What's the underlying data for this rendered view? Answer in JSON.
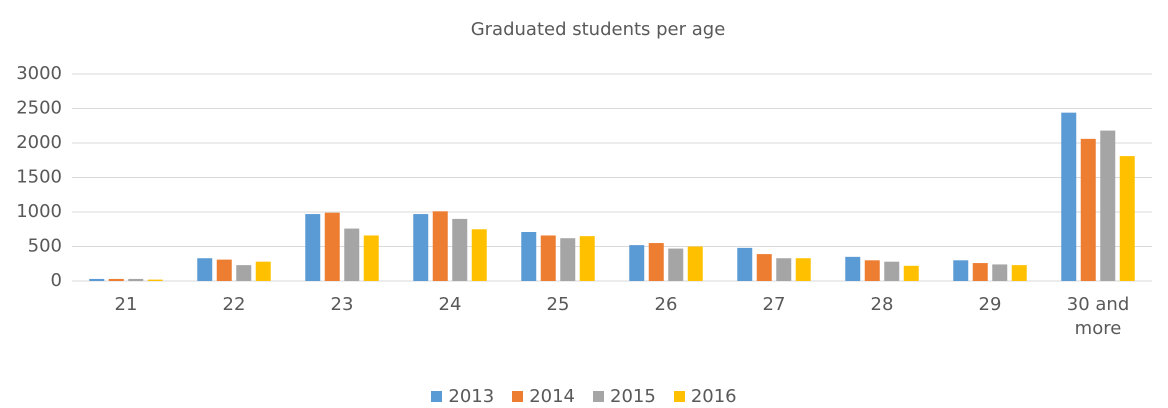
{
  "chart_data": {
    "type": "bar",
    "title": "Graduated students per age",
    "categories": [
      "21",
      "22",
      "23",
      "24",
      "25",
      "26",
      "27",
      "28",
      "29",
      "30 and more"
    ],
    "series": [
      {
        "name": "2013",
        "color": "#5b9bd5",
        "values": [
          30,
          330,
          970,
          970,
          710,
          520,
          480,
          350,
          300,
          2440
        ]
      },
      {
        "name": "2014",
        "color": "#ed7d31",
        "values": [
          30,
          310,
          990,
          1010,
          660,
          550,
          390,
          300,
          260,
          2060
        ]
      },
      {
        "name": "2015",
        "color": "#a5a5a5",
        "values": [
          30,
          230,
          760,
          900,
          620,
          470,
          330,
          280,
          240,
          2180
        ]
      },
      {
        "name": "2016",
        "color": "#ffc000",
        "values": [
          20,
          280,
          660,
          750,
          650,
          500,
          330,
          220,
          230,
          1810
        ]
      }
    ],
    "ylim": [
      0,
      3000
    ],
    "yticks": [
      0,
      500,
      1000,
      1500,
      2000,
      2500,
      3000
    ],
    "grid": true,
    "legend": "bottom"
  }
}
